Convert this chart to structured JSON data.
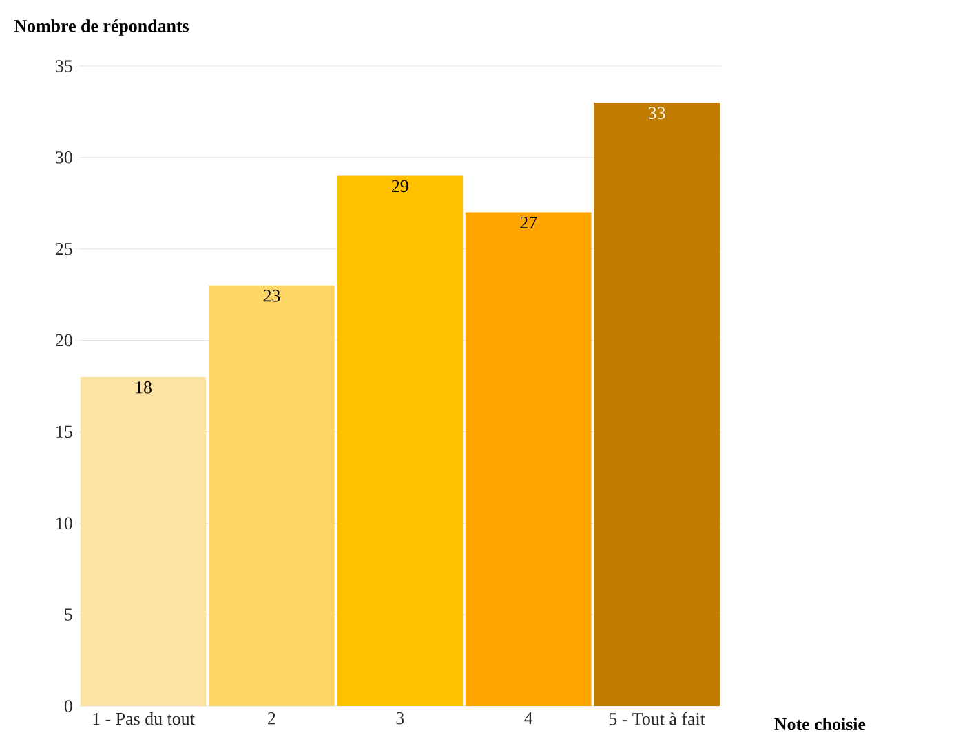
{
  "chart_data": {
    "type": "bar",
    "xlabel": "Note choisie",
    "ylabel": "Nombre de répondants",
    "categories": [
      "1 - Pas du tout",
      "2",
      "3",
      "4",
      "5 - Tout à fait"
    ],
    "values": [
      18,
      23,
      29,
      27,
      33
    ],
    "colors": [
      "#fde3a3",
      "#fdd666",
      "#ffc000",
      "#ffa500",
      "#bf7c00"
    ],
    "ylim": [
      0,
      35
    ],
    "yticks": [
      0,
      5,
      10,
      15,
      20,
      25,
      30,
      35
    ],
    "grid": "y",
    "data_labels": true
  }
}
